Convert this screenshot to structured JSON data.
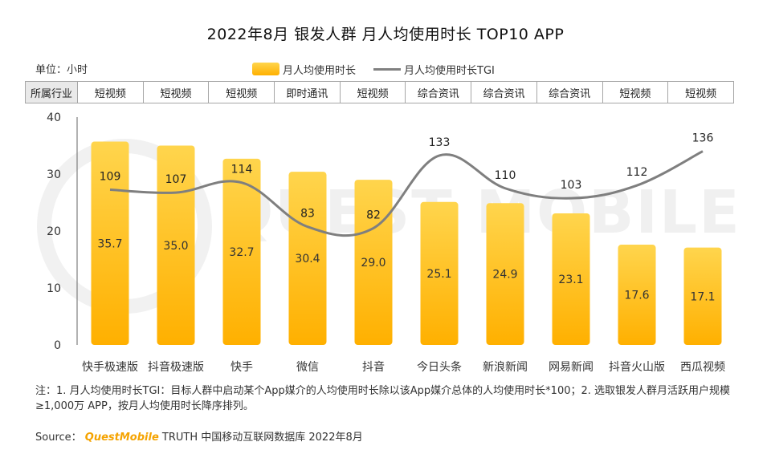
{
  "title": "2022年8月 银发人群 月人均使用时长 TOP10 APP",
  "unit_label": "单位：小时",
  "legend": {
    "bar": "月人均使用时长",
    "line": "月人均使用时长TGI"
  },
  "industry_header": "所属行业",
  "industries": [
    "短视频",
    "短视频",
    "短视频",
    "即时通讯",
    "短视频",
    "综合资讯",
    "综合资讯",
    "综合资讯",
    "短视频",
    "短视频"
  ],
  "watermark": "QUEST MOBILE",
  "colors": {
    "bar_top": "#ffd54d",
    "bar_bottom": "#ffb000",
    "line": "#7f7f7f",
    "brand": "#f5a300"
  },
  "chart_data": {
    "type": "bar",
    "categories": [
      "快手极速版",
      "抖音极速版",
      "快手",
      "微信",
      "抖音",
      "今日头条",
      "新浪新闻",
      "网易新闻",
      "抖音火山版",
      "西瓜视频"
    ],
    "series": [
      {
        "name": "月人均使用时长",
        "type": "bar",
        "values": [
          35.7,
          35.0,
          32.7,
          30.4,
          29.0,
          25.1,
          24.9,
          23.1,
          17.6,
          17.1
        ]
      },
      {
        "name": "月人均使用时长TGI",
        "type": "line",
        "values": [
          109,
          107,
          114,
          83,
          82,
          133,
          110,
          103,
          112,
          136
        ]
      }
    ],
    "yticks": [
      "0",
      "10",
      "20",
      "30",
      "40"
    ],
    "ylim": [
      0,
      40
    ],
    "ylabel": "小时"
  },
  "note": "注：1. 月人均使用时长TGI：目标人群中启动某个App媒介的人均使用时长除以该App媒介总体的人均使用时长*100；2. 选取银发人群月活跃用户规模≥1,000万 APP，按月人均使用时长降序排列。",
  "source": {
    "label": "Source：",
    "brand": "QuestMobile",
    "rest": "TRUTH 中国移动互联网数据库 2022年8月"
  }
}
